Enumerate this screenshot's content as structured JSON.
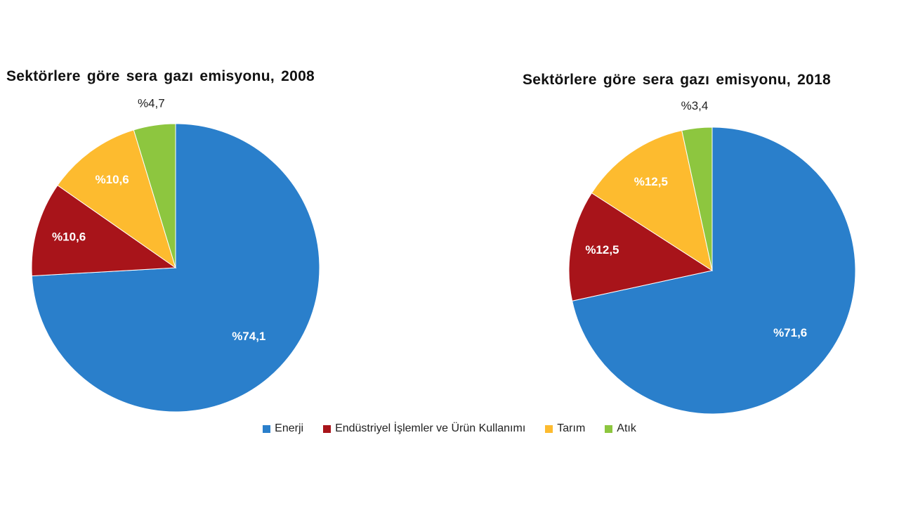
{
  "chart_data": [
    {
      "type": "pie",
      "title": "Sektörlere göre sera gazı emisyonu,  2008",
      "slices": [
        {
          "category": "Enerji",
          "value": 74.1,
          "label": "%74,1"
        },
        {
          "category": "Endüstriyel İşlemler ve Ürün Kullanımı",
          "value": 10.6,
          "label": "%10,6"
        },
        {
          "category": "Tarım",
          "value": 10.6,
          "label": "%10,6"
        },
        {
          "category": "Atık",
          "value": 4.7,
          "label": "%4,7"
        }
      ]
    },
    {
      "type": "pie",
      "title": "Sektörlere göre sera gazı emisyonu,  2018",
      "slices": [
        {
          "category": "Enerji",
          "value": 71.6,
          "label": "%71,6"
        },
        {
          "category": "Endüstriyel İşlemler ve Ürün Kullanımı",
          "value": 12.5,
          "label": "%12,5"
        },
        {
          "category": "Tarım",
          "value": 12.5,
          "label": "%12,5"
        },
        {
          "category": "Atık",
          "value": 3.4,
          "label": "%3,4"
        }
      ]
    }
  ],
  "legend": {
    "placement": "bottom",
    "items": [
      {
        "label": "Enerji",
        "color": "#2A7FCB"
      },
      {
        "label": "Endüstriyel İşlemler ve Ürün Kullanımı",
        "color": "#A8141A"
      },
      {
        "label": "Tarım",
        "color": "#FDBB2F"
      },
      {
        "label": "Atık",
        "color": "#8DC63F"
      }
    ]
  }
}
